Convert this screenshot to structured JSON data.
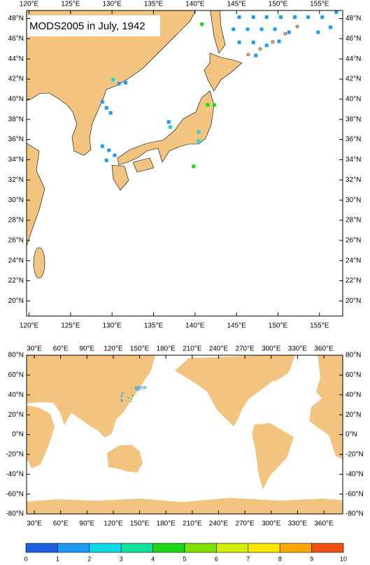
{
  "title": "MODS2005 in July, 1942",
  "regional_map": {
    "xlim": [
      119.7,
      157.8
    ],
    "ylim": [
      18.5,
      48.8
    ],
    "xticks": [
      {
        "value": 120,
        "label": "120°E"
      },
      {
        "value": 125,
        "label": "125°E"
      },
      {
        "value": 130,
        "label": "130°E"
      },
      {
        "value": 135,
        "label": "135°E"
      },
      {
        "value": 140,
        "label": "140°E"
      },
      {
        "value": 145,
        "label": "145°E"
      },
      {
        "value": 150,
        "label": "150°E"
      },
      {
        "value": 155,
        "label": "155°E"
      }
    ],
    "yticks": [
      {
        "value": 20,
        "label": "20°N"
      },
      {
        "value": 22,
        "label": "22°N"
      },
      {
        "value": 24,
        "label": "24°N"
      },
      {
        "value": 26,
        "label": "26°N"
      },
      {
        "value": 28,
        "label": "28°N"
      },
      {
        "value": 30,
        "label": "30°N"
      },
      {
        "value": 32,
        "label": "32°N"
      },
      {
        "value": 34,
        "label": "34°N"
      },
      {
        "value": 36,
        "label": "36°N"
      },
      {
        "value": 38,
        "label": "38°N"
      },
      {
        "value": 40,
        "label": "40°N"
      },
      {
        "value": 42,
        "label": "42°N"
      },
      {
        "value": 44,
        "label": "44°N"
      },
      {
        "value": 46,
        "label": "46°N"
      },
      {
        "value": 48,
        "label": "48°N"
      }
    ]
  },
  "global_map": {
    "xlim": [
      21.2,
      381.5
    ],
    "ylim": [
      -80,
      80
    ],
    "xticks": [
      {
        "value": 30,
        "label": "30°E"
      },
      {
        "value": 60,
        "label": "60°E"
      },
      {
        "value": 90,
        "label": "90°E"
      },
      {
        "value": 120,
        "label": "120°E"
      },
      {
        "value": 150,
        "label": "150°E"
      },
      {
        "value": 180,
        "label": "180°E"
      },
      {
        "value": 210,
        "label": "210°E"
      },
      {
        "value": 240,
        "label": "240°E"
      },
      {
        "value": 270,
        "label": "270°E"
      },
      {
        "value": 300,
        "label": "300°E"
      },
      {
        "value": 330,
        "label": "330°E"
      },
      {
        "value": 360,
        "label": "360°E"
      }
    ],
    "yticks": [
      {
        "value": -80,
        "label": "-80°N"
      },
      {
        "value": -60,
        "label": "-60°N"
      },
      {
        "value": -40,
        "label": "-40°N"
      },
      {
        "value": -20,
        "label": "-20°N"
      },
      {
        "value": 0,
        "label": "0°N"
      },
      {
        "value": 20,
        "label": "20°N"
      },
      {
        "value": 40,
        "label": "40°N"
      },
      {
        "value": 60,
        "label": "60°N"
      },
      {
        "value": 80,
        "label": "80°N"
      }
    ]
  },
  "observations": {
    "lon": [
      145.5,
      147.2,
      148.8,
      150.5,
      152.2,
      153.8,
      155.5,
      157.2,
      144.8,
      146.5,
      148.2,
      149.8,
      151.5,
      156.5,
      145.5,
      147.2,
      148.8,
      150.3,
      155,
      147.5,
      141,
      130.3,
      131,
      131.8,
      129,
      129.5,
      130,
      129,
      129.8,
      130.5,
      129.5,
      137,
      137.2,
      141.7,
      142.5,
      140.6,
      140.6,
      140
    ],
    "lat": [
      48,
      48,
      48,
      48,
      48,
      48,
      48,
      48.5,
      46.8,
      46.8,
      46.8,
      46.8,
      46.5,
      47,
      45.5,
      45.5,
      45.2,
      45.6,
      46.5,
      44.2,
      47.3,
      41.8,
      41.4,
      41.5,
      39.6,
      39,
      38.5,
      35.2,
      34.8,
      34.3,
      33.8,
      37.6,
      37.1,
      39.3,
      39.3,
      36.6,
      35.7,
      33.2
    ],
    "counts": [
      1,
      1,
      1,
      1,
      1,
      1,
      1,
      1,
      1,
      1,
      1,
      1,
      1,
      1,
      1,
      1,
      1,
      1,
      1,
      1,
      4.5,
      2.5,
      1,
      1,
      1,
      1,
      1,
      1,
      1,
      1,
      1,
      1,
      3,
      4,
      4,
      2.5,
      2.5,
      4.5
    ]
  },
  "colorbar": {
    "ticks": [
      0,
      1,
      2,
      3,
      4,
      5,
      6,
      7,
      8,
      9,
      10
    ],
    "colors": [
      "#1e5ee0",
      "#1e9bf0",
      "#10d8e8",
      "#10e0a0",
      "#18d818",
      "#80e000",
      "#d0f000",
      "#ffe800",
      "#ffa800",
      "#f05010"
    ]
  }
}
